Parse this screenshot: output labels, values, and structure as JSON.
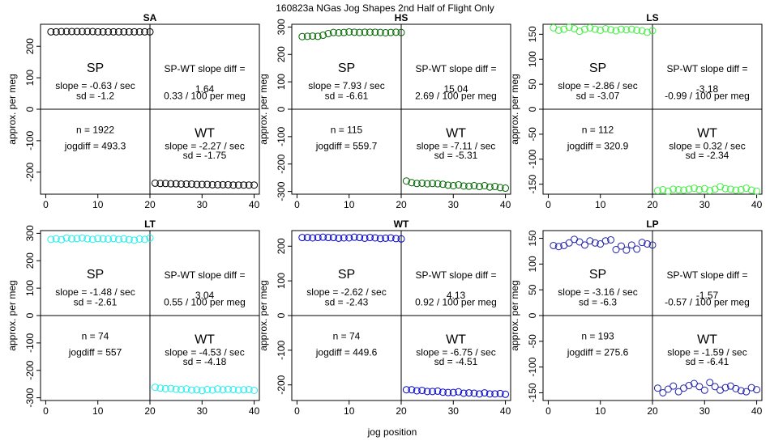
{
  "figure": {
    "title": "160823a   NGas Jog Shapes 2nd Half of Flight Only",
    "xlabel": "jog position",
    "ylabel": "approx. per meg"
  },
  "labels": {
    "sp": "SP",
    "wt": "WT",
    "diff_title": "SP-WT slope diff ="
  },
  "chart_data": [
    {
      "type": "scatter",
      "title": "SA",
      "color": "#000000",
      "xlim": [
        -1,
        41
      ],
      "ylim": [
        -270,
        270
      ],
      "yticks": [
        -200,
        -100,
        0,
        100,
        200
      ],
      "xticks": [
        0,
        10,
        20,
        30,
        40
      ],
      "x": [
        1,
        2,
        3,
        4,
        5,
        6,
        7,
        8,
        9,
        10,
        11,
        12,
        13,
        14,
        15,
        16,
        17,
        18,
        19,
        20,
        21,
        22,
        23,
        24,
        25,
        26,
        27,
        28,
        29,
        30,
        31,
        32,
        33,
        34,
        35,
        36,
        37,
        38,
        39,
        40
      ],
      "y": [
        246,
        246,
        247,
        247,
        247,
        247,
        247,
        247,
        247,
        246,
        246,
        246,
        246,
        246,
        246,
        246,
        246,
        246,
        246,
        246,
        -235,
        -236,
        -236,
        -237,
        -237,
        -238,
        -238,
        -238,
        -239,
        -239,
        -239,
        -240,
        -240,
        -240,
        -240,
        -241,
        -241,
        -241,
        -241,
        -241
      ],
      "sp": {
        "slope": "slope = -0.63 / sec",
        "sd": "sd = -1.2"
      },
      "wt": {
        "slope": "slope = -2.27 / sec",
        "sd": "sd = -1.75"
      },
      "diff": {
        "value": "1.64",
        "per_meg": "0.33 / 100 per meg"
      },
      "n": "n = 1922",
      "jogdiff": "jogdiff = 493.3"
    },
    {
      "type": "scatter",
      "title": "HS",
      "color": "#006400",
      "xlim": [
        -1,
        41
      ],
      "ylim": [
        -310,
        310
      ],
      "yticks": [
        -300,
        -200,
        -100,
        0,
        100,
        200,
        300
      ],
      "xticks": [
        0,
        10,
        20,
        30,
        40
      ],
      "x": [
        1,
        2,
        3,
        4,
        5,
        6,
        7,
        8,
        9,
        10,
        11,
        12,
        13,
        14,
        15,
        16,
        17,
        18,
        19,
        20,
        21,
        22,
        23,
        24,
        25,
        26,
        27,
        28,
        29,
        30,
        31,
        32,
        33,
        34,
        35,
        36,
        37,
        38,
        39,
        40
      ],
      "y": [
        265,
        266,
        267,
        266,
        270,
        276,
        280,
        279,
        280,
        282,
        281,
        280,
        281,
        281,
        281,
        280,
        279,
        280,
        281,
        280,
        -262,
        -268,
        -271,
        -270,
        -272,
        -271,
        -272,
        -274,
        -277,
        -279,
        -276,
        -280,
        -281,
        -279,
        -282,
        -279,
        -284,
        -282,
        -286,
        -288
      ],
      "sp": {
        "slope": "slope = 7.93 / sec",
        "sd": "sd = -6.61"
      },
      "wt": {
        "slope": "slope = -7.11 / sec",
        "sd": "sd = -5.31"
      },
      "diff": {
        "value": "15.04",
        "per_meg": "2.69 / 100 per meg"
      },
      "n": "n = 115",
      "jogdiff": "jogdiff = 559.7"
    },
    {
      "type": "scatter",
      "title": "LS",
      "color": "#44ee44",
      "xlim": [
        -1,
        41
      ],
      "ylim": [
        -170,
        170
      ],
      "yticks": [
        -150,
        -100,
        -50,
        0,
        50,
        100,
        150
      ],
      "xticks": [
        0,
        10,
        20,
        30,
        40
      ],
      "x": [
        1,
        2,
        3,
        4,
        5,
        6,
        7,
        8,
        9,
        10,
        11,
        12,
        13,
        14,
        15,
        16,
        17,
        18,
        19,
        20,
        21,
        22,
        23,
        24,
        25,
        26,
        27,
        28,
        29,
        30,
        31,
        32,
        33,
        34,
        35,
        36,
        37,
        38,
        39,
        40
      ],
      "y": [
        163,
        158,
        160,
        164,
        161,
        156,
        160,
        163,
        160,
        158,
        161,
        159,
        157,
        160,
        159,
        160,
        158,
        157,
        154,
        157,
        -163,
        -161,
        -164,
        -160,
        -161,
        -162,
        -160,
        -158,
        -161,
        -159,
        -163,
        -160,
        -155,
        -159,
        -160,
        -162,
        -161,
        -158,
        -162,
        -164
      ],
      "sp": {
        "slope": "slope = -2.86 / sec",
        "sd": "sd = -3.07"
      },
      "wt": {
        "slope": "slope = 0.32 / sec",
        "sd": "sd = -2.34"
      },
      "diff": {
        "value": "-3.18",
        "per_meg": "-0.99 / 100 per meg"
      },
      "n": "n = 112",
      "jogdiff": "jogdiff = 320.9"
    },
    {
      "type": "scatter",
      "title": "LT",
      "color": "#22eeee",
      "xlim": [
        -1,
        41
      ],
      "ylim": [
        -310,
        310
      ],
      "yticks": [
        -300,
        -200,
        -100,
        0,
        100,
        200,
        300
      ],
      "xticks": [
        0,
        10,
        20,
        30,
        40
      ],
      "x": [
        1,
        2,
        3,
        4,
        5,
        6,
        7,
        8,
        9,
        10,
        11,
        12,
        13,
        14,
        15,
        16,
        17,
        18,
        19,
        20,
        21,
        22,
        23,
        24,
        25,
        26,
        27,
        28,
        29,
        30,
        31,
        32,
        33,
        34,
        35,
        36,
        37,
        38,
        39,
        40
      ],
      "y": [
        278,
        280,
        277,
        283,
        280,
        281,
        283,
        280,
        278,
        281,
        280,
        279,
        281,
        278,
        280,
        277,
        275,
        279,
        278,
        283,
        -262,
        -265,
        -267,
        -266,
        -269,
        -270,
        -268,
        -272,
        -271,
        -274,
        -270,
        -272,
        -268,
        -271,
        -269,
        -270,
        -272,
        -271,
        -270,
        -273
      ],
      "sp": {
        "slope": "slope = -1.48 / sec",
        "sd": "sd = -2.61"
      },
      "wt": {
        "slope": "slope = -4.53 / sec",
        "sd": "sd = -4.18"
      },
      "diff": {
        "value": "3.04",
        "per_meg": "0.55 / 100 per meg"
      },
      "n": "n = 74",
      "jogdiff": "jogdiff = 557"
    },
    {
      "type": "scatter",
      "title": "WT",
      "color": "#0000cc",
      "xlim": [
        -1,
        41
      ],
      "ylim": [
        -245,
        245
      ],
      "yticks": [
        -200,
        -100,
        0,
        100,
        200
      ],
      "xticks": [
        0,
        10,
        20,
        30,
        40
      ],
      "x": [
        1,
        2,
        3,
        4,
        5,
        6,
        7,
        8,
        9,
        10,
        11,
        12,
        13,
        14,
        15,
        16,
        17,
        18,
        19,
        20,
        21,
        22,
        23,
        24,
        25,
        26,
        27,
        28,
        29,
        30,
        31,
        32,
        33,
        34,
        35,
        36,
        37,
        38,
        39,
        40
      ],
      "y": [
        225,
        225,
        224,
        225,
        226,
        225,
        225,
        223,
        224,
        224,
        226,
        225,
        223,
        225,
        224,
        222,
        223,
        224,
        222,
        221,
        -214,
        -214,
        -217,
        -216,
        -219,
        -219,
        -218,
        -221,
        -222,
        -222,
        -220,
        -224,
        -223,
        -224,
        -226,
        -223,
        -226,
        -226,
        -225,
        -227
      ],
      "sp": {
        "slope": "slope = -2.62 / sec",
        "sd": "sd = -2.43"
      },
      "wt": {
        "slope": "slope = -6.75 / sec",
        "sd": "sd = -4.51"
      },
      "diff": {
        "value": "4.13",
        "per_meg": "0.92 / 100 per meg"
      },
      "n": "n = 74",
      "jogdiff": "jogdiff = 449.6"
    },
    {
      "type": "scatter",
      "title": "LP",
      "color": "#2222aa",
      "xlim": [
        -1,
        41
      ],
      "ylim": [
        -165,
        165
      ],
      "yticks": [
        -150,
        -100,
        -50,
        0,
        50,
        100,
        150
      ],
      "xticks": [
        0,
        10,
        20,
        30,
        40
      ],
      "x": [
        1,
        2,
        3,
        4,
        5,
        6,
        7,
        8,
        9,
        10,
        11,
        12,
        13,
        14,
        15,
        16,
        17,
        18,
        19,
        20,
        21,
        22,
        23,
        24,
        25,
        26,
        27,
        28,
        29,
        30,
        31,
        32,
        33,
        34,
        35,
        36,
        37,
        38,
        39,
        40
      ],
      "y": [
        136,
        134,
        136,
        141,
        148,
        143,
        137,
        145,
        141,
        139,
        145,
        147,
        128,
        135,
        127,
        137,
        129,
        142,
        139,
        137,
        -141,
        -150,
        -143,
        -137,
        -148,
        -141,
        -136,
        -132,
        -138,
        -145,
        -130,
        -138,
        -145,
        -140,
        -137,
        -142,
        -146,
        -148,
        -140,
        -144
      ],
      "sp": {
        "slope": "slope = -3.16 / sec",
        "sd": "sd = -6.3"
      },
      "wt": {
        "slope": "slope = -1.59 / sec",
        "sd": "sd = -6.41"
      },
      "diff": {
        "value": "-1.57",
        "per_meg": "-0.57 / 100 per meg"
      },
      "n": "n = 193",
      "jogdiff": "jogdiff = 275.6"
    }
  ]
}
